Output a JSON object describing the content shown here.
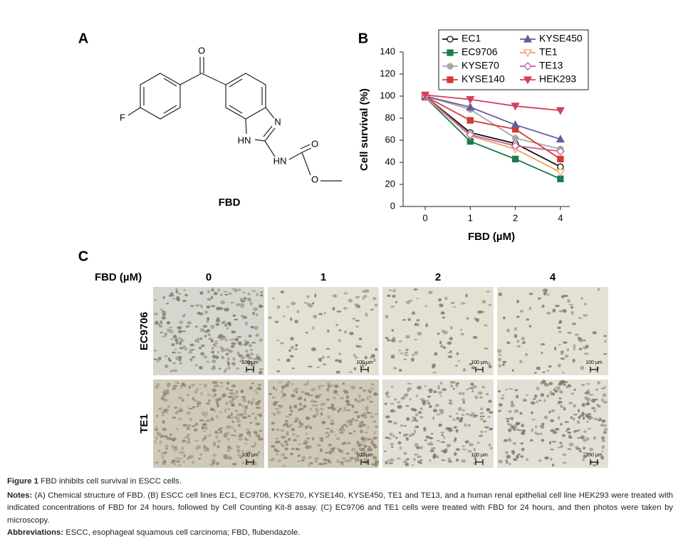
{
  "panel_a": {
    "label": "A",
    "atoms": [
      "O",
      "F",
      "N",
      "HN",
      "HN",
      "O",
      "O"
    ],
    "compound": "FBD"
  },
  "chart_data": {
    "type": "line",
    "panel_label": "B",
    "xlabel": "FBD (µM)",
    "ylabel": "Cell survival (%)",
    "categories": [
      "0",
      "1",
      "2",
      "4"
    ],
    "ylim": [
      0,
      140
    ],
    "yticks": [
      0,
      20,
      40,
      60,
      80,
      100,
      120,
      140
    ],
    "series": [
      {
        "name": "EC1",
        "color": "#111111",
        "marker": "circle-open",
        "values": [
          100,
          67,
          57,
          36
        ]
      },
      {
        "name": "EC9706",
        "color": "#1f7a4c",
        "marker": "square",
        "values": [
          99,
          59,
          43,
          25
        ]
      },
      {
        "name": "KYSE70",
        "color": "#a8a8a8",
        "marker": "circle",
        "values": [
          100,
          88,
          62,
          52
        ]
      },
      {
        "name": "KYSE140",
        "color": "#d43a32",
        "marker": "square",
        "values": [
          100,
          78,
          70,
          43
        ]
      },
      {
        "name": "KYSE450",
        "color": "#6b5b9a",
        "marker": "triangle",
        "values": [
          100,
          90,
          74,
          61
        ]
      },
      {
        "name": "TE1",
        "color": "#f0a060",
        "marker": "triangle-down-open",
        "values": [
          99,
          64,
          52,
          31
        ]
      },
      {
        "name": "TE13",
        "color": "#c0609e",
        "marker": "diamond-open",
        "values": [
          100,
          65,
          55,
          50
        ]
      },
      {
        "name": "HEK293",
        "color": "#d2405e",
        "marker": "triangle-down",
        "values": [
          101,
          97,
          91,
          87
        ]
      }
    ]
  },
  "panel_c": {
    "label": "C",
    "dose_label": "FBD (µM)",
    "doses": [
      "0",
      "1",
      "2",
      "4"
    ],
    "rows": [
      "EC9706",
      "TE1"
    ],
    "scale_bars": [
      [
        "100 µm",
        "100 µm",
        "100 µm",
        "100 µm"
      ],
      [
        "100 µm",
        "100 µm",
        "100 µm",
        "100 µm"
      ]
    ]
  },
  "caption": {
    "figure_label": "Figure 1",
    "title": "FBD inhibits cell survival in ESCC cells.",
    "notes_label": "Notes:",
    "notes": "(A) Chemical structure of FBD. (B) ESCC cell lines EC1, EC9706, KYSE70, KYSE140, KYSE450, TE1 and TE13, and a human renal epithelial cell line HEK293 were treated with indicated concentrations of FBD for 24 hours, followed by Cell Counting Kit-8 assay. (C) EC9706 and TE1 cells were treated with FBD for 24 hours, and then photos were taken by microscopy.",
    "abbreviations_label": "Abbreviations:",
    "abbreviations": "ESCC, esophageal squamous cell carcinoma; FBD, flubendazole."
  }
}
